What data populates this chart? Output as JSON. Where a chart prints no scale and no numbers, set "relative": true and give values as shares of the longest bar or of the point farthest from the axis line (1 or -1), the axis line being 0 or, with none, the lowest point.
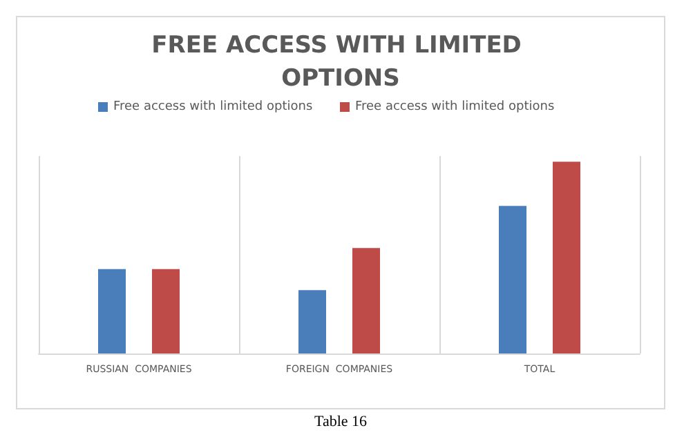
{
  "chart_data": {
    "type": "bar",
    "title": "FREE ACCESS WITH LIMITED OPTIONS",
    "relative": true,
    "categories": [
      "RUSSIAN  COMPANIES",
      "FOREIGN  COMPANIES",
      "TOTAL"
    ],
    "series": [
      {
        "name": "Free access with limited options",
        "color": "#4a7ebb",
        "values": [
          0.44,
          0.33,
          0.77
        ]
      },
      {
        "name": "Free access with limited options",
        "color": "#be4b48",
        "values": [
          0.44,
          0.55,
          1
        ]
      }
    ],
    "grid": "x",
    "legend": "top",
    "annotations": [
      "Table 16"
    ]
  }
}
